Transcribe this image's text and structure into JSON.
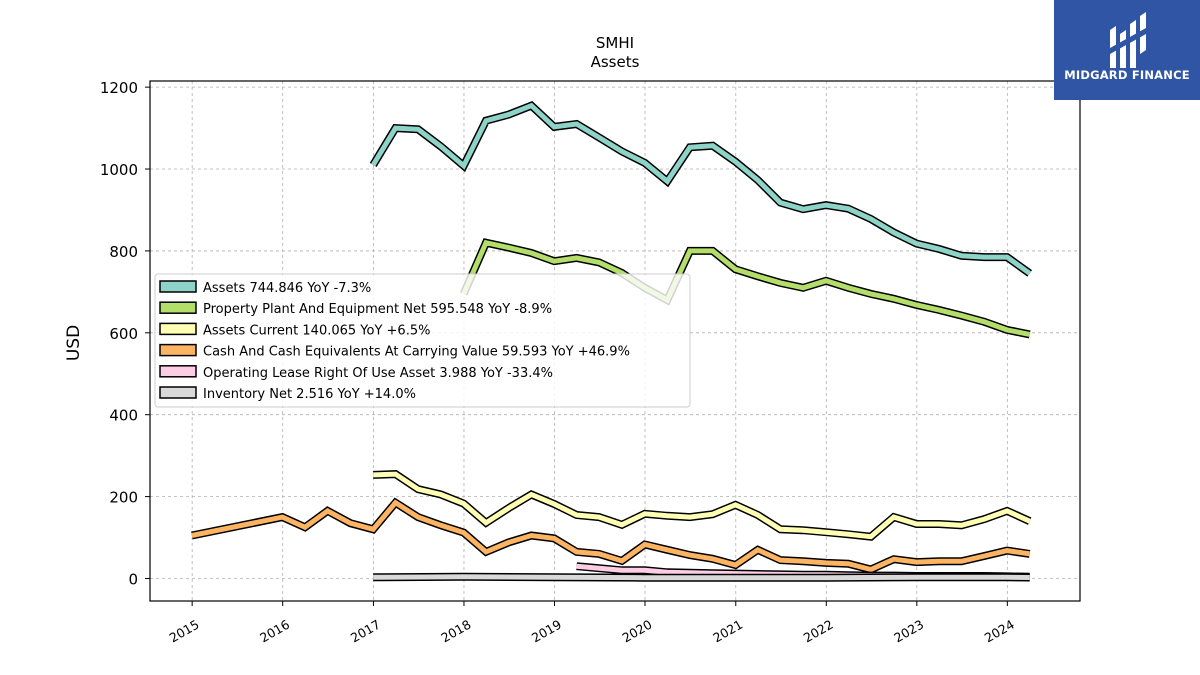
{
  "brand": {
    "name": "MIDGARD FINANCE",
    "bg": "#2f55a4"
  },
  "chart_data": {
    "type": "line",
    "title": "SMHI",
    "subtitle": "Assets",
    "ylabel": "USD",
    "xlabel": "",
    "ylim": [
      -55,
      1215
    ],
    "xlim": [
      "2014-07-15",
      "2024-10-20"
    ],
    "y_ticks": [
      0,
      200,
      400,
      600,
      800,
      1000,
      1200
    ],
    "x_ticks": [
      "2015",
      "2016",
      "2017",
      "2018",
      "2019",
      "2020",
      "2021",
      "2022",
      "2023",
      "2024"
    ],
    "grid": true,
    "legend_position": "center-left",
    "series": [
      {
        "name": "Assets",
        "legend": "Assets  744.846 YoY -7.3%",
        "color": "#8dd3c7",
        "points": [
          [
            "2016-12-31",
            1010
          ],
          [
            "2017-03-31",
            1100
          ],
          [
            "2017-06-30",
            1097
          ],
          [
            "2017-09-30",
            1055
          ],
          [
            "2017-12-31",
            1008
          ],
          [
            "2018-03-31",
            1118
          ],
          [
            "2018-06-30",
            1133
          ],
          [
            "2018-09-30",
            1155
          ],
          [
            "2018-12-31",
            1103
          ],
          [
            "2019-03-31",
            1110
          ],
          [
            "2019-06-30",
            1077
          ],
          [
            "2019-09-30",
            1043
          ],
          [
            "2019-12-31",
            1015
          ],
          [
            "2020-03-31",
            970
          ],
          [
            "2020-06-30",
            1053
          ],
          [
            "2020-09-30",
            1057
          ],
          [
            "2020-12-31",
            1018
          ],
          [
            "2021-03-31",
            973
          ],
          [
            "2021-06-30",
            918
          ],
          [
            "2021-09-30",
            902
          ],
          [
            "2021-12-31",
            912
          ],
          [
            "2022-03-31",
            903
          ],
          [
            "2022-06-30",
            878
          ],
          [
            "2022-09-30",
            845
          ],
          [
            "2022-12-31",
            818
          ],
          [
            "2023-03-31",
            805
          ],
          [
            "2023-06-30",
            788
          ],
          [
            "2023-09-30",
            785
          ],
          [
            "2023-12-31",
            785
          ],
          [
            "2024-03-31",
            745
          ]
        ]
      },
      {
        "name": "Property Plant And Equipment Net",
        "legend": "Property Plant And Equipment Net  595.548 YoY -8.9%",
        "color": "#b3de69",
        "points": [
          [
            "2017-12-31",
            695
          ],
          [
            "2018-03-31",
            820
          ],
          [
            "2018-06-30",
            808
          ],
          [
            "2018-09-30",
            795
          ],
          [
            "2018-12-31",
            775
          ],
          [
            "2019-03-31",
            783
          ],
          [
            "2019-06-30",
            772
          ],
          [
            "2019-09-30",
            746
          ],
          [
            "2019-12-31",
            710
          ],
          [
            "2020-03-31",
            680
          ],
          [
            "2020-06-30",
            800
          ],
          [
            "2020-09-30",
            800
          ],
          [
            "2020-12-31",
            755
          ],
          [
            "2021-03-31",
            738
          ],
          [
            "2021-06-30",
            722
          ],
          [
            "2021-09-30",
            710
          ],
          [
            "2021-12-31",
            727
          ],
          [
            "2022-03-31",
            710
          ],
          [
            "2022-06-30",
            695
          ],
          [
            "2022-09-30",
            683
          ],
          [
            "2022-12-31",
            668
          ],
          [
            "2023-03-31",
            656
          ],
          [
            "2023-06-30",
            642
          ],
          [
            "2023-09-30",
            627
          ],
          [
            "2023-12-31",
            607
          ],
          [
            "2024-03-31",
            596
          ]
        ]
      },
      {
        "name": "Assets Current",
        "legend": "Assets Current  140.065 YoY +6.5%",
        "color": "#ffffb3",
        "points": [
          [
            "2016-12-31",
            253
          ],
          [
            "2017-03-31",
            255
          ],
          [
            "2017-06-30",
            218
          ],
          [
            "2017-09-30",
            205
          ],
          [
            "2017-12-31",
            183
          ],
          [
            "2018-03-31",
            136
          ],
          [
            "2018-06-30",
            172
          ],
          [
            "2018-09-30",
            205
          ],
          [
            "2018-12-31",
            182
          ],
          [
            "2019-03-31",
            155
          ],
          [
            "2019-06-30",
            150
          ],
          [
            "2019-09-30",
            131
          ],
          [
            "2019-12-31",
            158
          ],
          [
            "2020-03-31",
            153
          ],
          [
            "2020-06-30",
            150
          ],
          [
            "2020-09-30",
            157
          ],
          [
            "2020-12-31",
            180
          ],
          [
            "2021-03-31",
            155
          ],
          [
            "2021-06-30",
            120
          ],
          [
            "2021-09-30",
            118
          ],
          [
            "2021-12-31",
            113
          ],
          [
            "2022-03-31",
            108
          ],
          [
            "2022-06-30",
            102
          ],
          [
            "2022-09-30",
            150
          ],
          [
            "2022-12-31",
            133
          ],
          [
            "2023-03-31",
            133
          ],
          [
            "2023-06-30",
            130
          ],
          [
            "2023-09-30",
            145
          ],
          [
            "2023-12-31",
            165
          ],
          [
            "2024-03-31",
            140
          ]
        ]
      },
      {
        "name": "Cash And Cash Equivalents At Carrying Value",
        "legend": "Cash And Cash Equivalents At Carrying Value  59.593 YoY +46.9%",
        "color": "#fdb462",
        "points": [
          [
            "2014-12-31",
            105
          ],
          [
            "2015-12-31",
            150
          ],
          [
            "2016-03-31",
            125
          ],
          [
            "2016-06-30",
            165
          ],
          [
            "2016-09-30",
            135
          ],
          [
            "2016-12-31",
            120
          ],
          [
            "2017-03-31",
            185
          ],
          [
            "2017-06-30",
            150
          ],
          [
            "2017-09-30",
            130
          ],
          [
            "2017-12-31",
            112
          ],
          [
            "2018-03-31",
            65
          ],
          [
            "2018-06-30",
            88
          ],
          [
            "2018-09-30",
            105
          ],
          [
            "2018-12-31",
            98
          ],
          [
            "2019-03-31",
            65
          ],
          [
            "2019-06-30",
            60
          ],
          [
            "2019-09-30",
            43
          ],
          [
            "2019-12-31",
            83
          ],
          [
            "2020-03-31",
            70
          ],
          [
            "2020-06-30",
            57
          ],
          [
            "2020-09-30",
            48
          ],
          [
            "2020-12-31",
            33
          ],
          [
            "2021-03-31",
            70
          ],
          [
            "2021-06-30",
            45
          ],
          [
            "2021-09-30",
            42
          ],
          [
            "2021-12-31",
            38
          ],
          [
            "2022-03-31",
            36
          ],
          [
            "2022-06-30",
            22
          ],
          [
            "2022-09-30",
            47
          ],
          [
            "2022-12-31",
            40
          ],
          [
            "2023-03-31",
            42
          ],
          [
            "2023-06-30",
            42
          ],
          [
            "2023-09-30",
            55
          ],
          [
            "2023-12-31",
            68
          ],
          [
            "2024-03-31",
            60
          ]
        ]
      },
      {
        "name": "Operating Lease Right Of Use Asset",
        "legend": "Operating Lease Right Of Use Asset  3.988 YoY -33.4%",
        "color": "#fccde5",
        "points": [
          [
            "2019-03-31",
            30
          ],
          [
            "2019-06-30",
            25
          ],
          [
            "2019-09-30",
            20
          ],
          [
            "2019-12-31",
            20
          ],
          [
            "2020-03-31",
            15
          ],
          [
            "2020-06-30",
            14
          ],
          [
            "2020-09-30",
            13
          ],
          [
            "2020-12-31",
            12
          ],
          [
            "2021-03-31",
            11
          ],
          [
            "2021-06-30",
            10
          ],
          [
            "2021-09-30",
            9
          ],
          [
            "2021-12-31",
            9
          ],
          [
            "2022-03-31",
            8
          ],
          [
            "2022-06-30",
            7
          ],
          [
            "2022-09-30",
            7
          ],
          [
            "2022-12-31",
            6
          ],
          [
            "2023-03-31",
            6
          ],
          [
            "2023-06-30",
            6
          ],
          [
            "2023-09-30",
            6
          ],
          [
            "2023-12-31",
            5
          ],
          [
            "2024-03-31",
            4
          ]
        ]
      },
      {
        "name": "Inventory Net",
        "legend": "Inventory Net  2.516 YoY +14.0%",
        "color": "#d9d9d9",
        "points": [
          [
            "2016-12-31",
            3
          ],
          [
            "2017-12-31",
            4
          ],
          [
            "2018-12-31",
            3
          ],
          [
            "2019-12-31",
            2
          ],
          [
            "2020-12-31",
            2
          ],
          [
            "2021-12-31",
            2
          ],
          [
            "2022-12-31",
            3
          ],
          [
            "2023-12-31",
            3
          ],
          [
            "2024-03-31",
            2.5
          ]
        ]
      }
    ]
  }
}
